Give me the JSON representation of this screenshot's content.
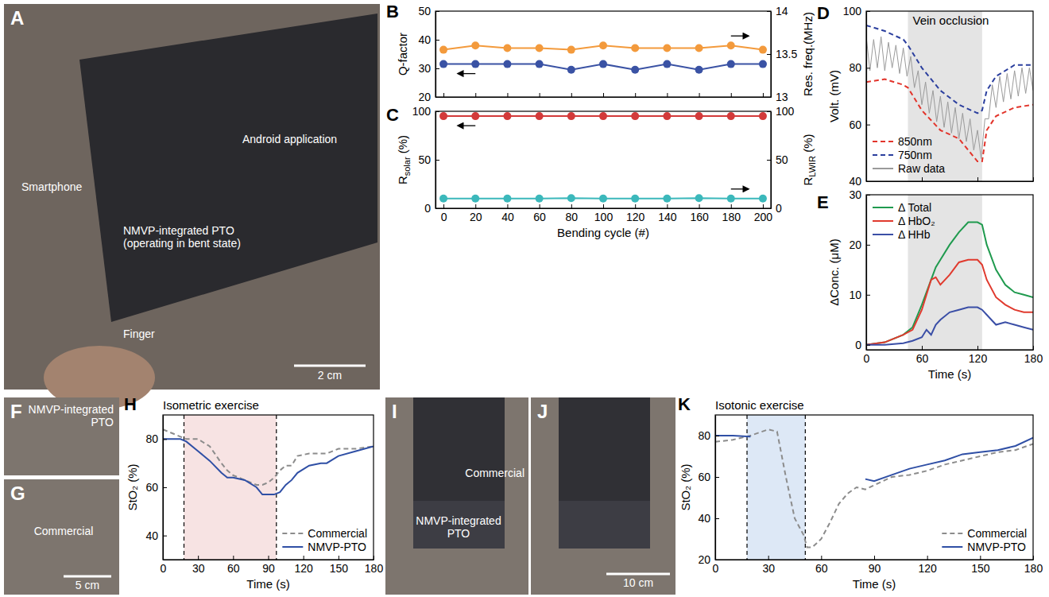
{
  "chart_data": [
    {
      "panel": "B",
      "type": "line",
      "x": [
        0,
        20,
        40,
        60,
        80,
        100,
        120,
        140,
        160,
        180,
        200
      ],
      "xlim": [
        -5,
        205
      ],
      "xticks": [
        0,
        20,
        40,
        60,
        80,
        100,
        120,
        140,
        160,
        180,
        200
      ],
      "ylabel": "Q-factor",
      "ylim": [
        20,
        50
      ],
      "yticks": [
        20,
        30,
        40,
        50
      ],
      "y2label": "Res. freq.(MHz)",
      "y2lim": [
        13,
        14
      ],
      "y2ticks": [
        13,
        13.5,
        14
      ],
      "tick_labels": "y",
      "series": [
        {
          "color": "#3a52a4",
          "marker": "circle",
          "values": [
            31.5,
            31.5,
            31.5,
            31.5,
            29.5,
            31.5,
            29.5,
            31.5,
            29.5,
            31.5,
            31.5
          ]
        },
        {
          "color": "#f39a3c",
          "marker": "circle",
          "axis": "y2",
          "values": [
            13.55,
            13.6,
            13.57,
            13.57,
            13.55,
            13.6,
            13.57,
            13.57,
            13.57,
            13.6,
            13.55
          ]
        }
      ]
    },
    {
      "panel": "C",
      "type": "line",
      "x": [
        0,
        20,
        40,
        60,
        80,
        100,
        120,
        140,
        160,
        180,
        200
      ],
      "xlim": [
        -5,
        205
      ],
      "xticks": [
        0,
        20,
        40,
        60,
        80,
        100,
        120,
        140,
        160,
        180,
        200
      ],
      "xlabel": "Bending cycle (#)",
      "ylabel": [
        "R",
        "solar",
        " (%)"
      ],
      "ylim": [
        0,
        100
      ],
      "yticks": [
        0,
        50,
        100
      ],
      "y2label": [
        "R",
        "LWIR",
        " (%)"
      ],
      "y2lim": [
        0,
        100
      ],
      "y2ticks": [
        0,
        50,
        100
      ],
      "series": [
        {
          "color": "#d33a3a",
          "marker": "circle",
          "values": [
            95,
            95,
            95,
            95,
            95,
            95,
            95,
            95,
            95,
            95,
            95
          ]
        },
        {
          "color": "#3bb8bb",
          "marker": "circle",
          "axis": "y2",
          "values": [
            10,
            10,
            10,
            10,
            10.5,
            10,
            10,
            10,
            10.5,
            10,
            10
          ]
        }
      ]
    },
    {
      "panel": "D",
      "type": "line",
      "xlim": [
        0,
        180
      ],
      "xticks": [
        0,
        60,
        120,
        180
      ],
      "ylabel": "Volt. (mV)",
      "ylim": [
        40,
        100
      ],
      "yticks": [
        40,
        60,
        80,
        100
      ],
      "tick_labels": "y",
      "legend": "lower left",
      "annotations": [
        {
          "label": "Vein occlusion",
          "x0": 45,
          "x1": 125,
          "color": "#e4e4e4"
        }
      ],
      "series": [
        {
          "name": "850nm",
          "color": "#e2342b",
          "line_style": "dashed",
          "x": [
            0,
            20,
            40,
            45,
            60,
            80,
            100,
            120,
            125,
            130,
            140,
            160,
            180
          ],
          "values": [
            75,
            76,
            74,
            73,
            65,
            58,
            55,
            47,
            47,
            58,
            63,
            66,
            67
          ]
        },
        {
          "name": "750nm",
          "color": "#2b3f9e",
          "line_style": "dashed",
          "x": [
            0,
            20,
            40,
            45,
            60,
            80,
            100,
            120,
            125,
            130,
            140,
            160,
            180
          ],
          "values": [
            95,
            93,
            90,
            88,
            80,
            72,
            67,
            64,
            65,
            72,
            77,
            81,
            81
          ]
        },
        {
          "name": "Raw data",
          "color": "#9a9a9a",
          "x": [
            0,
            4,
            8,
            12,
            16,
            20,
            24,
            28,
            32,
            36,
            40,
            44,
            48,
            52,
            56,
            60,
            64,
            68,
            72,
            76,
            80,
            84,
            88,
            92,
            96,
            100,
            104,
            108,
            112,
            116,
            120,
            124,
            128,
            132,
            136,
            140,
            144,
            148,
            152,
            156,
            160,
            164,
            168,
            172,
            176,
            180
          ],
          "values": [
            91,
            79,
            90,
            80,
            91,
            79,
            89,
            80,
            88,
            78,
            87,
            77,
            84,
            73,
            79,
            67,
            75,
            64,
            72,
            61,
            70,
            59,
            68,
            57,
            66,
            55,
            64,
            54,
            62,
            51,
            58,
            48,
            62,
            62,
            74,
            66,
            77,
            68,
            78,
            69,
            79,
            70,
            80,
            71,
            80,
            72
          ]
        }
      ]
    },
    {
      "panel": "E",
      "type": "line",
      "x": [
        0,
        20,
        40,
        50,
        60,
        65,
        70,
        75,
        80,
        90,
        100,
        110,
        120,
        125,
        130,
        140,
        150,
        160,
        170,
        180
      ],
      "xlim": [
        0,
        180
      ],
      "xticks": [
        0,
        60,
        120,
        180
      ],
      "xlabel": "Time (s)",
      "ylabel": "ΔConc. (μM)",
      "ylim": [
        -1,
        30
      ],
      "yticks": [
        0,
        10,
        20,
        30
      ],
      "legend": "upper left",
      "annotations": [
        {
          "x0": 45,
          "x1": 125,
          "color": "#e4e4e4"
        }
      ],
      "series": [
        {
          "name": "Δ Total",
          "color": "#1f9a4e",
          "values": [
            0,
            0.5,
            2,
            3.5,
            8,
            10.5,
            13,
            15.5,
            17,
            20,
            22.5,
            24.5,
            24.5,
            24,
            20,
            15,
            12,
            10.5,
            10,
            9.5
          ]
        },
        {
          "name": "Δ HbO₂",
          "color": "#e03a2e",
          "values": [
            0,
            0.5,
            2,
            3,
            7,
            10,
            13,
            13.5,
            12,
            14,
            16.5,
            17,
            17,
            16,
            13,
            9.5,
            8,
            7,
            6.5,
            6.5
          ]
        },
        {
          "name": "Δ HHb",
          "color": "#3a4ea6",
          "values": [
            0,
            0,
            0.3,
            0.8,
            1.5,
            3,
            2,
            4,
            5,
            6.5,
            7,
            7.5,
            7.5,
            7,
            6,
            4,
            4.5,
            4,
            3.5,
            3
          ]
        }
      ]
    },
    {
      "panel": "H",
      "type": "line",
      "x": [
        0,
        15,
        20,
        30,
        40,
        50,
        55,
        60,
        70,
        80,
        85,
        90,
        95,
        100,
        105,
        110,
        115,
        125,
        135,
        140,
        150,
        165,
        180
      ],
      "xlim": [
        0,
        180
      ],
      "xticks": [
        0,
        30,
        60,
        90,
        120,
        150,
        180
      ],
      "xlabel": "Time (s)",
      "ylabel": "StO₂ (%)",
      "ylim": [
        30,
        90
      ],
      "yticks": [
        40,
        60,
        80
      ],
      "legend": "lower right",
      "annotations": [
        {
          "label": "Isometric exercise",
          "x0": 18,
          "x1": 97,
          "color": "#f7e3e3",
          "line_style": "dashed"
        }
      ],
      "series": [
        {
          "name": "Commercial",
          "color": "#8c8c8c",
          "line_style": "dashed",
          "values": [
            84,
            81,
            80,
            80,
            77,
            70,
            67,
            65,
            63,
            61,
            61,
            62,
            64,
            67,
            69,
            69,
            73,
            74,
            74,
            74,
            76,
            76,
            77
          ]
        },
        {
          "name": "NMVP-PTO",
          "color": "#2f4fa5",
          "values": [
            80,
            80,
            79,
            75,
            71,
            66,
            64,
            64,
            63,
            60,
            57,
            57,
            57,
            58,
            61,
            63,
            66,
            69,
            70,
            70,
            73,
            75,
            77
          ]
        }
      ]
    },
    {
      "panel": "K",
      "type": "line",
      "x": [
        0,
        10,
        20,
        30,
        35,
        40,
        45,
        50,
        52,
        55,
        60,
        65,
        70,
        75,
        80,
        85,
        90,
        100,
        110,
        120,
        130,
        140,
        150,
        160,
        170,
        180
      ],
      "xlim": [
        0,
        180
      ],
      "xticks": [
        0,
        30,
        60,
        90,
        120,
        150,
        180
      ],
      "xlabel": "Time (s)",
      "ylabel": "StO₂ (%)",
      "ylim": [
        20,
        90
      ],
      "yticks": [
        20,
        40,
        60,
        80
      ],
      "legend": "lower right",
      "annotations": [
        {
          "label": "Isotonic exercise",
          "x0": 18,
          "x1": 51,
          "color": "#dde8f6",
          "line_style": "dashed"
        }
      ],
      "series": [
        {
          "name": "Commercial",
          "color": "#8c8c8c",
          "line_style": "dashed",
          "values": [
            77,
            78,
            80,
            83,
            82,
            60,
            40,
            32,
            26,
            26,
            30,
            38,
            47,
            52,
            55,
            54,
            56,
            60,
            61,
            63,
            66,
            68,
            70,
            72,
            73,
            76
          ]
        },
        {
          "name": "NMVP-PTO",
          "color": "#2f4fa5",
          "values": [
            80,
            80,
            79.5,
            null,
            null,
            null,
            null,
            null,
            null,
            null,
            null,
            null,
            null,
            null,
            null,
            59,
            58,
            61,
            64,
            66,
            68,
            71,
            72,
            73,
            75,
            79
          ]
        }
      ]
    }
  ],
  "photo_panels": [
    {
      "panel": "A",
      "labels": [
        "Android application",
        "Smartphone",
        "NMVP-integrated PTO (operating in bent state)",
        "Finger",
        "2 cm"
      ]
    },
    {
      "panel": "F",
      "labels": [
        "NMVP-integrated PTO"
      ]
    },
    {
      "panel": "G",
      "labels": [
        "Commercial",
        "5 cm"
      ]
    },
    {
      "panel": "I",
      "labels": [
        "Commercial",
        "NMVP-integrated PTO"
      ]
    },
    {
      "panel": "J",
      "labels": [
        "10 cm"
      ]
    }
  ]
}
